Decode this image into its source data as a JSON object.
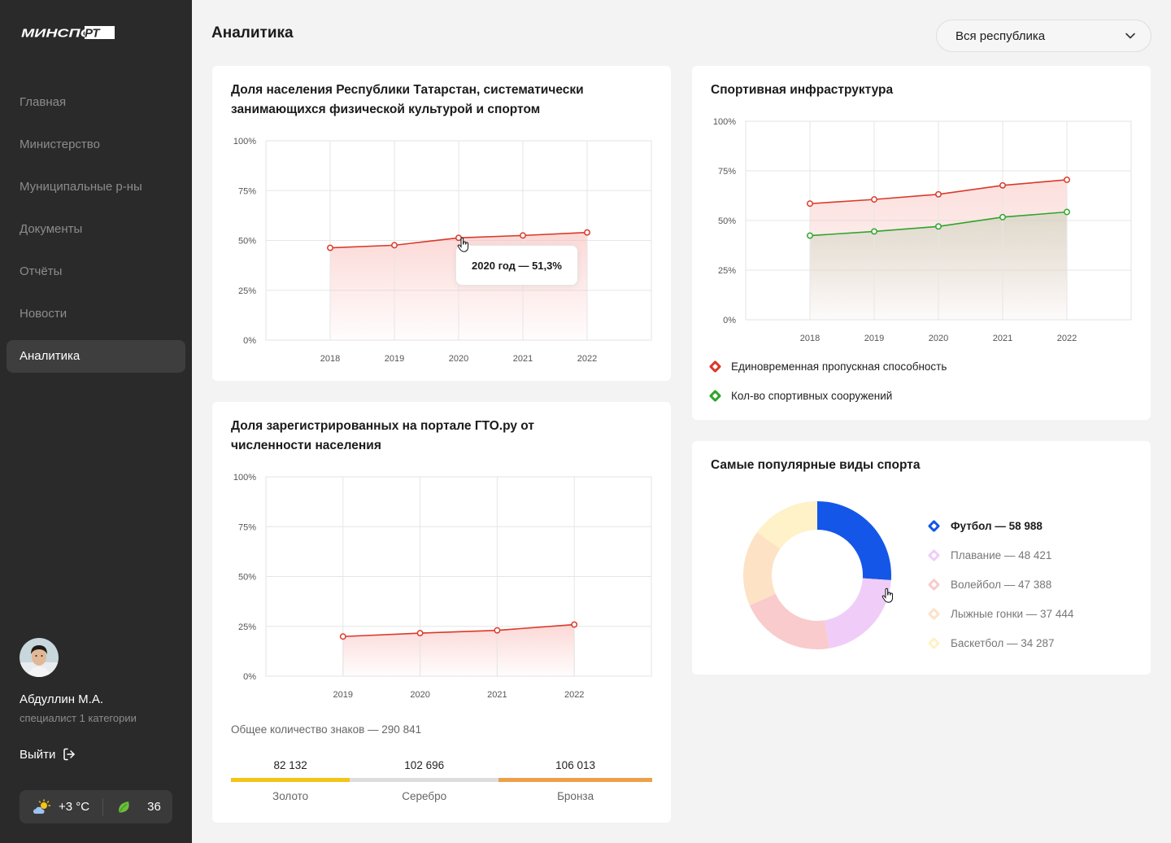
{
  "app": {
    "logo_text": "МИНСПОРТ"
  },
  "sidebar": {
    "items": [
      {
        "label": "Главная"
      },
      {
        "label": "Министерство"
      },
      {
        "label": "Муниципальные р-ны"
      },
      {
        "label": "Документы"
      },
      {
        "label": "Отчёты"
      },
      {
        "label": "Новости"
      },
      {
        "label": "Аналитика"
      }
    ],
    "active_index": 6,
    "user": {
      "name": "Абдуллин М.А.",
      "role": "специалист 1 категории"
    },
    "logout_label": "Выйти",
    "weather": {
      "temperature": "+3 °C",
      "icon": "partly-cloudy-icon"
    },
    "eco_index": {
      "value": "36",
      "icon": "leaf-icon"
    }
  },
  "header": {
    "title": "Аналитика",
    "region_select": {
      "value": "Вся республика"
    }
  },
  "colors": {
    "red": "#d93a2b",
    "green": "#2fa52a",
    "blue": "#1456e8",
    "gold": "#f5c417",
    "silver": "#dddddd",
    "bronze": "#eda049"
  },
  "chart_data": [
    {
      "type": "line",
      "title": "Доля населения Республики Татарстан, систематически занимающихся физической культурой и спортом",
      "x": [
        "2018",
        "2019",
        "2020",
        "2021",
        "2022"
      ],
      "y_ticks": [
        "100%",
        "75%",
        "50%",
        "25%",
        "0%"
      ],
      "ylim": [
        0,
        100
      ],
      "series": [
        {
          "values": [
            46.3,
            47.6,
            51.3,
            52.5,
            54.0
          ],
          "color": "#d93a2b"
        }
      ],
      "tooltip": "2020 год — 51,3%",
      "grid": true
    },
    {
      "type": "line",
      "title": "Спортивная инфраструктура",
      "x": [
        "2018",
        "2019",
        "2020",
        "2021",
        "2022"
      ],
      "y_ticks": [
        "100%",
        "75%",
        "50%",
        "25%",
        "0%"
      ],
      "ylim": [
        0,
        100
      ],
      "series": [
        {
          "name": "Единовременная пропускная способность",
          "values": [
            58.5,
            60.6,
            63.2,
            67.7,
            70.5
          ],
          "color": "#d93a2b"
        },
        {
          "name": "Кол-во спортивных сооружений",
          "values": [
            42.4,
            44.5,
            47.0,
            51.7,
            54.3
          ],
          "color": "#2fa52a"
        }
      ],
      "legend": "bottom-left",
      "grid": true
    },
    {
      "type": "line",
      "title": "Доля зарегистрированных на портале ГТО.ру от численности населения",
      "x": [
        "2019",
        "2020",
        "2021",
        "2022"
      ],
      "y_ticks": [
        "100%",
        "75%",
        "50%",
        "25%",
        "0%"
      ],
      "ylim": [
        0,
        100
      ],
      "series": [
        {
          "values": [
            19.9,
            21.6,
            23.0,
            25.9
          ],
          "color": "#d93a2b"
        }
      ],
      "grid": true
    },
    {
      "type": "pie",
      "title": "Самые популярные виды спорта",
      "slices": [
        {
          "label": "Футбол",
          "value": 58988,
          "text": "Футбол — 58 988",
          "color": "#1456e8"
        },
        {
          "label": "Плавание",
          "value": 48421,
          "text": "Плавание — 48 421",
          "color": "#f0cdf8"
        },
        {
          "label": "Волейбол",
          "value": 47388,
          "text": "Волейбол — 47 388",
          "color": "#f9cbcc"
        },
        {
          "label": "Лыжные гонки",
          "value": 37444,
          "text": "Лыжные гонки — 37 444",
          "color": "#fde2c6"
        },
        {
          "label": "Баскетбол",
          "value": 34287,
          "text": "Баскетбол — 34 287",
          "color": "#fff1c8"
        }
      ],
      "active_index": 0
    }
  ],
  "gto": {
    "total_text": "Общее количество знаков — 290 841",
    "medals": [
      {
        "label": "Золото",
        "value": "82 132",
        "color": "#f5c417"
      },
      {
        "label": "Серебро",
        "value": "102 696",
        "color": "#dddddd"
      },
      {
        "label": "Бронза",
        "value": "106 013",
        "color": "#eda049"
      }
    ]
  }
}
